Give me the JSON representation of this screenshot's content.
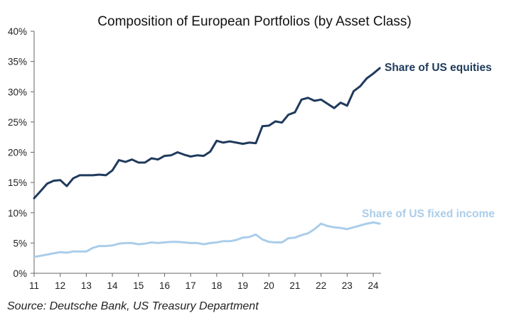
{
  "chart_data": {
    "type": "line",
    "title": "Composition of European Portfolios (by Asset Class)",
    "xlabel": "",
    "ylabel": "",
    "xlim": [
      11,
      24.3
    ],
    "ylim": [
      0,
      40
    ],
    "x_ticks": [
      "11",
      "12",
      "13",
      "14",
      "15",
      "16",
      "17",
      "18",
      "19",
      "20",
      "21",
      "22",
      "23",
      "24"
    ],
    "x_tick_values": [
      11,
      12,
      13,
      14,
      15,
      16,
      17,
      18,
      19,
      20,
      21,
      22,
      23,
      24
    ],
    "y_ticks": [
      "0%",
      "5%",
      "10%",
      "15%",
      "20%",
      "25%",
      "30%",
      "35%",
      "40%"
    ],
    "y_tick_values": [
      0,
      5,
      10,
      15,
      20,
      25,
      30,
      35,
      40
    ],
    "grid": false,
    "x": [
      11.0,
      11.25,
      11.5,
      11.75,
      12.0,
      12.25,
      12.5,
      12.75,
      13.0,
      13.25,
      13.5,
      13.75,
      14.0,
      14.25,
      14.5,
      14.75,
      15.0,
      15.25,
      15.5,
      15.75,
      16.0,
      16.25,
      16.5,
      16.75,
      17.0,
      17.25,
      17.5,
      17.75,
      18.0,
      18.25,
      18.5,
      18.75,
      19.0,
      19.25,
      19.5,
      19.75,
      20.0,
      20.25,
      20.5,
      20.75,
      21.0,
      21.25,
      21.5,
      21.75,
      22.0,
      22.25,
      22.5,
      22.75,
      23.0,
      23.25,
      23.5,
      23.75,
      24.0,
      24.25
    ],
    "series": [
      {
        "name": "Share of US equities",
        "color": "#1f3a5c",
        "values": [
          12.4,
          13.6,
          14.8,
          15.3,
          15.4,
          14.4,
          15.7,
          16.2,
          16.2,
          16.2,
          16.3,
          16.2,
          17.0,
          18.7,
          18.4,
          18.8,
          18.3,
          18.3,
          19.0,
          18.8,
          19.4,
          19.5,
          20.0,
          19.6,
          19.3,
          19.5,
          19.4,
          20.1,
          21.9,
          21.6,
          21.8,
          21.6,
          21.4,
          21.6,
          21.5,
          24.3,
          24.4,
          25.1,
          24.9,
          26.2,
          26.6,
          28.7,
          29.0,
          28.5,
          28.7,
          28.0,
          27.3,
          28.2,
          27.7,
          30.1,
          30.9,
          32.2,
          33.0,
          33.9
        ]
      },
      {
        "name": "Share of US fixed income",
        "color": "#aacdea",
        "values": [
          2.7,
          2.9,
          3.1,
          3.3,
          3.5,
          3.4,
          3.6,
          3.6,
          3.6,
          4.2,
          4.5,
          4.5,
          4.6,
          4.9,
          5.0,
          5.0,
          4.8,
          4.9,
          5.1,
          5.0,
          5.1,
          5.2,
          5.2,
          5.1,
          5.0,
          5.0,
          4.8,
          5.0,
          5.1,
          5.3,
          5.3,
          5.5,
          5.9,
          6.0,
          6.4,
          5.6,
          5.2,
          5.1,
          5.1,
          5.8,
          5.9,
          6.3,
          6.6,
          7.3,
          8.2,
          7.8,
          7.6,
          7.5,
          7.3,
          7.6,
          7.9,
          8.2,
          8.4,
          8.2
        ]
      }
    ],
    "series_labels": [
      "Share of US equities",
      "Share of US fixed income"
    ],
    "source": "Source: Deutsche Bank, US Treasury Department"
  }
}
